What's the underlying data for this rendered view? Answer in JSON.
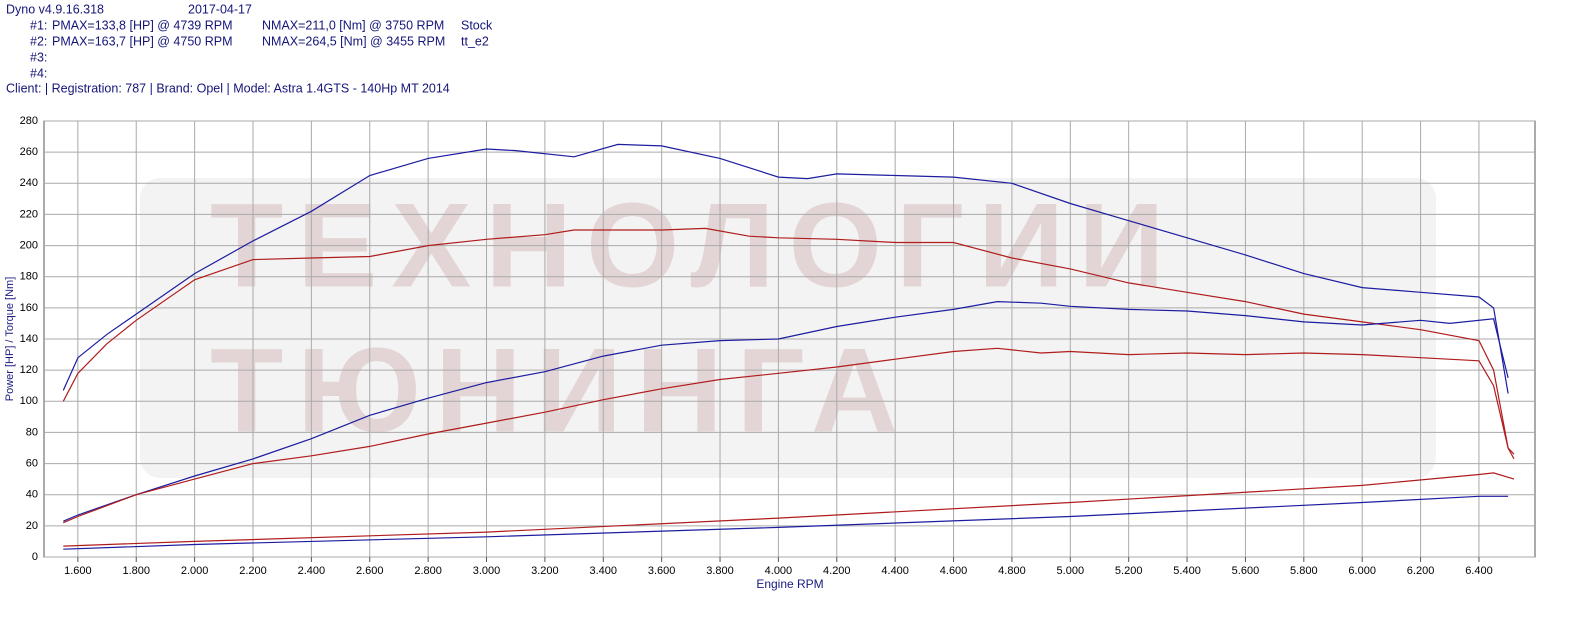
{
  "chart_data": {
    "type": "line",
    "app_version": "Dyno v4.9.16.318",
    "date": "2017-04-17",
    "runs": [
      {
        "id": "#1:",
        "pmax": "PMAX=133,8 [HP] @ 4739 RPM",
        "nmax": "NMAX=211,0 [Nm] @ 3750 RPM",
        "label": "Stock"
      },
      {
        "id": "#2:",
        "pmax": "PMAX=163,7 [HP] @ 4750 RPM",
        "nmax": "NMAX=264,5 [Nm] @ 3455 RPM",
        "label": "tt_e2"
      },
      {
        "id": "#3:"
      },
      {
        "id": "#4:"
      }
    ],
    "client": "Client:   | Registration: 787 | Brand: Opel | Model: Astra 1.4GTS - 140Hp MT 2014",
    "watermark": [
      "ТЕХНОЛОГИИ",
      "ТЮНИНГА"
    ],
    "x_label": "Engine RPM",
    "y_label": "Power [HP] / Torque [Nm]",
    "xlim": [
      1484,
      6592
    ],
    "ylim": [
      0,
      280
    ],
    "xticks": [
      {
        "value": 1600,
        "label": "1.600"
      },
      {
        "value": 1800,
        "label": "1.800"
      },
      {
        "value": 2000,
        "label": "2.000"
      },
      {
        "value": 2200,
        "label": "2.200"
      },
      {
        "value": 2400,
        "label": "2.400"
      },
      {
        "value": 2600,
        "label": "2.600"
      },
      {
        "value": 2800,
        "label": "2.800"
      },
      {
        "value": 3000,
        "label": "3.000"
      },
      {
        "value": 3200,
        "label": "3.200"
      },
      {
        "value": 3400,
        "label": "3.400"
      },
      {
        "value": 3600,
        "label": "3.600"
      },
      {
        "value": 3800,
        "label": "3.800"
      },
      {
        "value": 4000,
        "label": "4.000"
      },
      {
        "value": 4200,
        "label": "4.200"
      },
      {
        "value": 4400,
        "label": "4.400"
      },
      {
        "value": 4600,
        "label": "4.600"
      },
      {
        "value": 4800,
        "label": "4.800"
      },
      {
        "value": 5000,
        "label": "5.000"
      },
      {
        "value": 5200,
        "label": "5.200"
      },
      {
        "value": 5400,
        "label": "5.400"
      },
      {
        "value": 5600,
        "label": "5.600"
      },
      {
        "value": 5800,
        "label": "5.800"
      },
      {
        "value": 6000,
        "label": "6.000"
      },
      {
        "value": 6200,
        "label": "6.200"
      },
      {
        "value": 6400,
        "label": "6.400"
      }
    ],
    "yticks": [
      0,
      20,
      40,
      60,
      80,
      100,
      120,
      140,
      160,
      180,
      200,
      220,
      240,
      260,
      280
    ],
    "grid": true,
    "series": [
      {
        "color": "#1c1ca0",
        "x": [
          1550,
          1600,
          1700,
          1800,
          2000,
          2200,
          2400,
          2600,
          2800,
          3000,
          3100,
          3300,
          3450,
          3600,
          3800,
          4000,
          4100,
          4200,
          4400,
          4600,
          4800,
          5000,
          5200,
          5400,
          5600,
          5800,
          6000,
          6200,
          6400,
          6450,
          6500
        ],
        "values": [
          107,
          128,
          143,
          156,
          182,
          203,
          222,
          245,
          256,
          262,
          261,
          257,
          265,
          264,
          256,
          244,
          243,
          246,
          245,
          244,
          240,
          227,
          216,
          205,
          194,
          182,
          173,
          170,
          167,
          160,
          105
        ]
      },
      {
        "color": "#b01c1c",
        "x": [
          1550,
          1600,
          1700,
          1800,
          2000,
          2200,
          2400,
          2600,
          2800,
          3000,
          3200,
          3300,
          3600,
          3750,
          3900,
          4000,
          4200,
          4400,
          4600,
          4800,
          5000,
          5200,
          5400,
          5600,
          5800,
          6000,
          6200,
          6400,
          6450,
          6500,
          6520
        ],
        "values": [
          100,
          118,
          137,
          152,
          178,
          191,
          192,
          193,
          200,
          204,
          207,
          210,
          210,
          211,
          206,
          205,
          204,
          202,
          202,
          192,
          185,
          176,
          170,
          164,
          156,
          151,
          146,
          139,
          120,
          70,
          66
        ]
      },
      {
        "color": "#1c1ca0",
        "x": [
          1550,
          1600,
          1800,
          2000,
          2200,
          2400,
          2600,
          2800,
          3000,
          3200,
          3400,
          3600,
          3800,
          4000,
          4200,
          4400,
          4600,
          4750,
          4900,
          5000,
          5200,
          5400,
          5600,
          5800,
          6000,
          6200,
          6300,
          6450,
          6500
        ],
        "values": [
          23,
          27,
          40,
          52,
          63,
          76,
          91,
          102,
          112,
          119,
          129,
          136,
          139,
          140,
          148,
          154,
          159,
          164,
          163,
          161,
          159,
          158,
          155,
          151,
          149,
          152,
          150,
          153,
          115
        ]
      },
      {
        "color": "#b01c1c",
        "x": [
          1550,
          1600,
          1800,
          2000,
          2200,
          2400,
          2600,
          2800,
          3000,
          3200,
          3400,
          3600,
          3800,
          4000,
          4200,
          4400,
          4600,
          4750,
          4900,
          5000,
          5200,
          5400,
          5600,
          5800,
          6000,
          6200,
          6400,
          6450,
          6500,
          6520
        ],
        "values": [
          22,
          26,
          40,
          50,
          60,
          65,
          71,
          79,
          86,
          93,
          101,
          108,
          114,
          118,
          122,
          127,
          132,
          134,
          131,
          132,
          130,
          131,
          130,
          131,
          130,
          128,
          126,
          110,
          70,
          63
        ]
      },
      {
        "color": "#b01c1c",
        "x": [
          1550,
          2000,
          3000,
          4000,
          5000,
          6000,
          6400,
          6450,
          6520
        ],
        "values": [
          7,
          10,
          16,
          25,
          35,
          46,
          53,
          54,
          50
        ]
      },
      {
        "color": "#1c1ca0",
        "x": [
          1550,
          2000,
          3000,
          4000,
          5000,
          6000,
          6400,
          6500
        ],
        "values": [
          5,
          8,
          13,
          19,
          26,
          35,
          39,
          39
        ]
      }
    ]
  }
}
